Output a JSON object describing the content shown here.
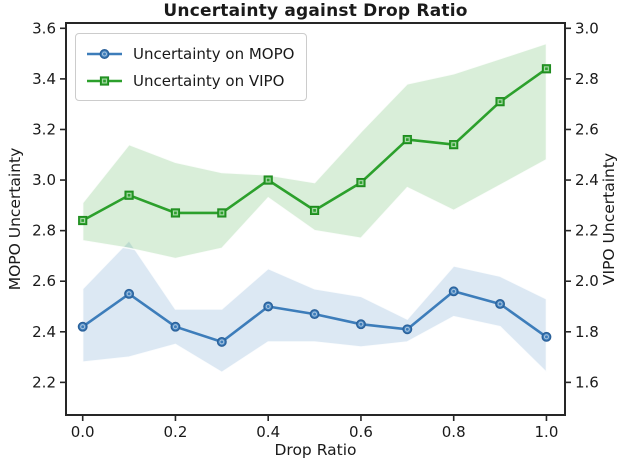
{
  "text_color": "#1a1a1a",
  "axis_color": "#262626",
  "chart_data": {
    "type": "line",
    "title": "Uncertainty against Drop Ratio",
    "xlabel": "Drop Ratio",
    "grid": false,
    "legend": {
      "position": "upper left",
      "entries": [
        "Uncertainty on MOPO",
        "Uncertainty on VIPO"
      ]
    },
    "x_axis": {
      "lim": [
        -0.036,
        1.04
      ],
      "tick_values": [
        0.0,
        0.2,
        0.4,
        0.6,
        0.8,
        1.0
      ],
      "tick_labels": [
        "0.0",
        "0.2",
        "0.4",
        "0.6",
        "0.8",
        "1.0"
      ]
    },
    "left_axis": {
      "label": "MOPO Uncertainty",
      "lim": [
        2.071,
        3.621
      ],
      "tick_values": [
        3.6,
        3.4,
        3.2,
        3.0,
        2.8,
        2.6,
        2.4,
        2.2
      ],
      "tick_labels": [
        "3.6",
        "3.4",
        "3.2",
        "3.0",
        "2.8",
        "2.6",
        "2.4",
        "2.2"
      ]
    },
    "right_axis": {
      "label": "VIPO Uncertainty",
      "lim": [
        1.471,
        3.021
      ],
      "tick_values": [
        3.0,
        2.8,
        2.6,
        2.4,
        2.2,
        2.0,
        1.8,
        1.6
      ],
      "tick_labels": [
        "3.0",
        "2.8",
        "2.6",
        "2.4",
        "2.2",
        "2.0",
        "1.8",
        "1.6"
      ]
    },
    "x": [
      0.0,
      0.1,
      0.2,
      0.3,
      0.4,
      0.5,
      0.6,
      0.7,
      0.8,
      0.9,
      1.0
    ],
    "series": [
      {
        "name": "Uncertainty on MOPO",
        "axis": "left",
        "marker": "circle",
        "color": "#3d7dba",
        "marker_edge_color": "#2a6099",
        "band_color": "rgba(61,125,186,0.18)",
        "values": [
          2.42,
          2.55,
          2.42,
          2.36,
          2.5,
          2.47,
          2.43,
          2.41,
          2.56,
          2.51,
          2.38
        ],
        "band_upper": [
          2.57,
          2.76,
          2.49,
          2.49,
          2.65,
          2.57,
          2.54,
          2.45,
          2.66,
          2.62,
          2.53
        ],
        "band_lower": [
          2.28,
          2.3,
          2.35,
          2.24,
          2.36,
          2.36,
          2.34,
          2.36,
          2.46,
          2.42,
          2.24
        ]
      },
      {
        "name": "Uncertainty on VIPO",
        "axis": "right",
        "marker": "square",
        "color": "#2ca02c",
        "marker_edge_color": "#1f8b1f",
        "band_color": "rgba(44,160,44,0.18)",
        "values": [
          2.24,
          2.34,
          2.27,
          2.27,
          2.4,
          2.28,
          2.39,
          2.56,
          2.54,
          2.71,
          2.84
        ],
        "band_upper": [
          2.31,
          2.54,
          2.47,
          2.43,
          2.42,
          2.39,
          2.59,
          2.78,
          2.82,
          2.88,
          2.94
        ],
        "band_lower": [
          2.16,
          2.13,
          2.09,
          2.13,
          2.33,
          2.2,
          2.17,
          2.37,
          2.28,
          2.38,
          2.48
        ]
      }
    ]
  }
}
